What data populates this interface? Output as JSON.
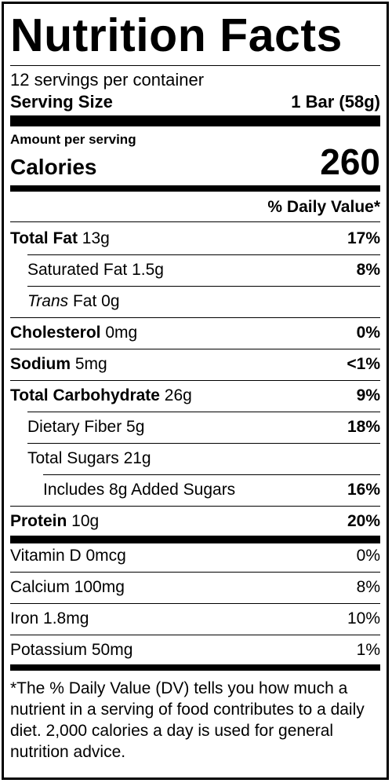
{
  "title": "Nutrition Facts",
  "servings_per_container": "12 servings per container",
  "serving_size": {
    "label": "Serving Size",
    "value": "1 Bar (58g)"
  },
  "amount_per_serving": "Amount per serving",
  "calories": {
    "label": "Calories",
    "value": "260"
  },
  "dv_header": "% Daily Value*",
  "nutrients": [
    {
      "name": "Total Fat",
      "amount": " 13g",
      "dv": "17%"
    },
    {
      "name": "Saturated Fat",
      "amount": " 1.5g",
      "dv": "8%"
    },
    {
      "name": "Trans",
      "amount": " Fat 0g",
      "dv": ""
    },
    {
      "name": "Cholesterol",
      "amount": " 0mg",
      "dv": "0%"
    },
    {
      "name": "Sodium",
      "amount": " 5mg",
      "dv": "<1%"
    },
    {
      "name": "Total Carbohydrate",
      "amount": " 26g",
      "dv": "9%"
    },
    {
      "name": "Dietary Fiber",
      "amount": " 5g",
      "dv": "18%"
    },
    {
      "name": "Total Sugars",
      "amount": " 21g",
      "dv": ""
    },
    {
      "name": "Includes 8g Added Sugars",
      "amount": "",
      "dv": "16%"
    },
    {
      "name": "Protein",
      "amount": " 10g",
      "dv": "20%"
    }
  ],
  "vitamins": [
    {
      "name": "Vitamin D 0mcg",
      "dv": "0%"
    },
    {
      "name": "Calcium 100mg",
      "dv": "8%"
    },
    {
      "name": "Iron 1.8mg",
      "dv": "10%"
    },
    {
      "name": "Potassium 50mg",
      "dv": "1%"
    }
  ],
  "footnote": "*The % Daily Value (DV) tells you how much a nutrient in a serving of food contributes to a daily diet. 2,000 calories a day is used for general nutrition advice."
}
